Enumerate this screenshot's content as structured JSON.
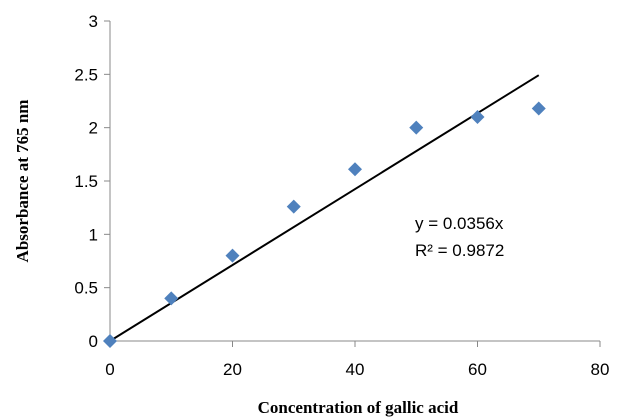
{
  "chart_data": {
    "type": "scatter",
    "title": "",
    "xlabel": "Concentration of gallic acid",
    "ylabel": "Absorbance at 765 nm",
    "xlim": [
      0,
      80
    ],
    "ylim": [
      0,
      3
    ],
    "xticks": [
      0,
      20,
      40,
      60,
      80
    ],
    "yticks": [
      0,
      0.5,
      1,
      1.5,
      2,
      2.5,
      3
    ],
    "ytick_labels": [
      "0",
      "0.5",
      "1",
      "1.5",
      "2",
      "2.5",
      "3"
    ],
    "grid": false,
    "legend": "none",
    "series": [
      {
        "marker": "diamond",
        "color": "#4F81BD",
        "points": [
          {
            "x": 0,
            "y": 0
          },
          {
            "x": 10,
            "y": 0.4
          },
          {
            "x": 20,
            "y": 0.8
          },
          {
            "x": 30,
            "y": 1.26
          },
          {
            "x": 40,
            "y": 1.61
          },
          {
            "x": 50,
            "y": 2.0
          },
          {
            "x": 60,
            "y": 2.1
          },
          {
            "x": 70,
            "y": 2.18
          }
        ]
      }
    ],
    "trendline": {
      "type": "linear",
      "slope": 0.0356,
      "x_range": [
        0,
        70
      ],
      "color": "#000000",
      "equation": "y = 0.0356x",
      "r_squared": "R² = 0.9872"
    }
  }
}
